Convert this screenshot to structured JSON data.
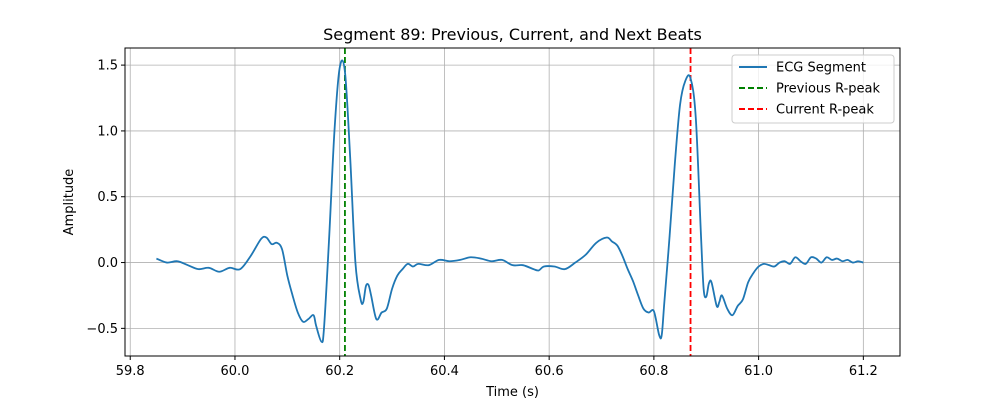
{
  "chart_data": {
    "type": "line",
    "title": "Segment 89: Previous, Current, and Next Beats",
    "xlabel": "Time (s)",
    "ylabel": "Amplitude",
    "xlim": [
      59.79,
      61.27
    ],
    "ylim": [
      -0.71,
      1.63
    ],
    "xticks": [
      59.8,
      60.0,
      60.2,
      60.4,
      60.6,
      60.8,
      61.0,
      61.2
    ],
    "yticks": [
      -0.5,
      0.0,
      0.5,
      1.0,
      1.5
    ],
    "xtick_labels": [
      "59.8",
      "60.0",
      "60.2",
      "60.4",
      "60.6",
      "60.8",
      "61.0",
      "61.2"
    ],
    "ytick_labels": [
      "−0.5",
      "0.0",
      "0.5",
      "1.0",
      "1.5"
    ],
    "grid": true,
    "legend_position": "top-right",
    "series": [
      {
        "name": "ECG Segment",
        "color": "#1f77b4",
        "style": "solid",
        "x": [
          59.85,
          59.87,
          59.89,
          59.91,
          59.93,
          59.95,
          59.97,
          59.99,
          60.01,
          60.03,
          60.05,
          60.06,
          60.07,
          60.08,
          60.09,
          60.1,
          60.11,
          60.12,
          60.13,
          60.14,
          60.15,
          60.155,
          60.165,
          60.17,
          60.18,
          60.19,
          60.2,
          60.21,
          60.22,
          60.23,
          60.24,
          60.245,
          60.25,
          60.255,
          60.26,
          60.27,
          60.28,
          60.29,
          60.3,
          60.31,
          60.32,
          60.33,
          60.34,
          60.35,
          60.37,
          60.39,
          60.41,
          60.43,
          60.45,
          60.47,
          60.49,
          60.51,
          60.53,
          60.55,
          60.57,
          60.58,
          60.59,
          60.61,
          60.63,
          60.65,
          60.67,
          60.69,
          60.71,
          60.72,
          60.73,
          60.74,
          60.75,
          60.76,
          60.77,
          60.78,
          60.79,
          60.8,
          60.81,
          60.815,
          60.82,
          60.83,
          60.84,
          60.85,
          60.86,
          60.87,
          60.88,
          60.89,
          60.895,
          60.9,
          60.905,
          60.91,
          60.92,
          60.925,
          60.93,
          60.94,
          60.95,
          60.96,
          60.97,
          60.98,
          60.99,
          61.0,
          61.01,
          61.02,
          61.03,
          61.04,
          61.05,
          61.06,
          61.07,
          61.08,
          61.09,
          61.1,
          61.11,
          61.12,
          61.13,
          61.14,
          61.15,
          61.16,
          61.17,
          61.18,
          61.19,
          61.2
        ],
        "y": [
          0.03,
          0.0,
          0.01,
          -0.02,
          -0.05,
          -0.04,
          -0.07,
          -0.04,
          -0.05,
          0.05,
          0.18,
          0.19,
          0.14,
          0.15,
          0.1,
          -0.1,
          -0.25,
          -0.38,
          -0.45,
          -0.43,
          -0.4,
          -0.48,
          -0.6,
          -0.5,
          0.2,
          1.0,
          1.48,
          1.45,
          0.8,
          0.0,
          -0.28,
          -0.3,
          -0.18,
          -0.17,
          -0.25,
          -0.43,
          -0.38,
          -0.35,
          -0.2,
          -0.1,
          -0.05,
          -0.01,
          -0.03,
          -0.01,
          -0.02,
          0.02,
          0.01,
          0.02,
          0.04,
          0.03,
          0.01,
          0.02,
          -0.02,
          -0.02,
          -0.05,
          -0.06,
          -0.03,
          -0.03,
          -0.05,
          0.0,
          0.06,
          0.15,
          0.19,
          0.16,
          0.13,
          0.05,
          -0.05,
          -0.14,
          -0.25,
          -0.35,
          -0.38,
          -0.37,
          -0.55,
          -0.55,
          -0.3,
          0.2,
          0.75,
          1.2,
          1.38,
          1.4,
          1.1,
          0.2,
          -0.2,
          -0.26,
          -0.16,
          -0.15,
          -0.33,
          -0.3,
          -0.25,
          -0.35,
          -0.4,
          -0.33,
          -0.28,
          -0.15,
          -0.08,
          -0.03,
          -0.01,
          -0.02,
          -0.03,
          0.0,
          0.01,
          -0.01,
          0.04,
          0.01,
          -0.01,
          0.04,
          0.03,
          0.0,
          0.04,
          0.02,
          0.03,
          0.01,
          0.02,
          0.0,
          0.01,
          0.0
        ]
      },
      {
        "name": "Previous R-peak",
        "color": "#008000",
        "style": "dashed",
        "x_value": 60.21
      },
      {
        "name": "Current R-peak",
        "color": "#ff0000",
        "style": "dashed",
        "x_value": 60.87
      }
    ]
  }
}
